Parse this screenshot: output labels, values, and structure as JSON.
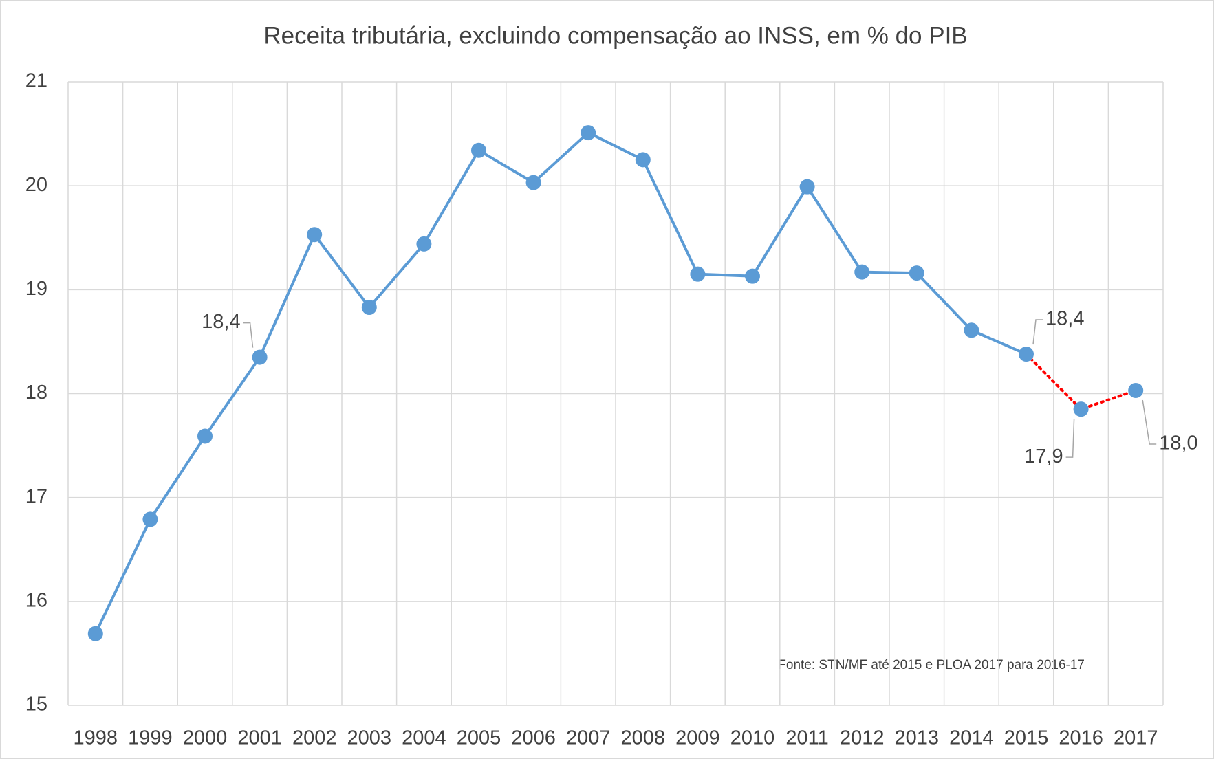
{
  "chart_data": {
    "type": "line",
    "title": "Receita tributária, excluindo compensação ao INSS, em % do PIB",
    "annotation": "Fonte: STN/MF até 2015 e PLOA 2017 para 2016-17",
    "categories": [
      "1998",
      "1999",
      "2000",
      "2001",
      "2002",
      "2003",
      "2004",
      "2005",
      "2006",
      "2007",
      "2008",
      "2009",
      "2010",
      "2011",
      "2012",
      "2013",
      "2014",
      "2015",
      "2016",
      "2017"
    ],
    "series": [
      {
        "color": "#5b9bd5",
        "values": [
          15.69,
          16.79,
          17.59,
          18.35,
          19.53,
          18.83,
          19.44,
          20.34,
          20.03,
          20.51,
          20.25,
          19.15,
          19.13,
          19.99,
          19.17,
          19.16,
          18.61,
          18.38,
          17.85,
          18.03
        ],
        "value_labels": [
          null,
          null,
          null,
          "18,4",
          null,
          null,
          null,
          null,
          null,
          null,
          null,
          null,
          null,
          null,
          null,
          null,
          null,
          "18,4",
          "17,9",
          "18,0"
        ]
      }
    ],
    "dotted_after": "2015",
    "dotted_color": "#ff0000",
    "ylim": [
      15,
      21
    ],
    "yticks": [
      15,
      16,
      17,
      18,
      19,
      20,
      21
    ],
    "grid": true
  }
}
